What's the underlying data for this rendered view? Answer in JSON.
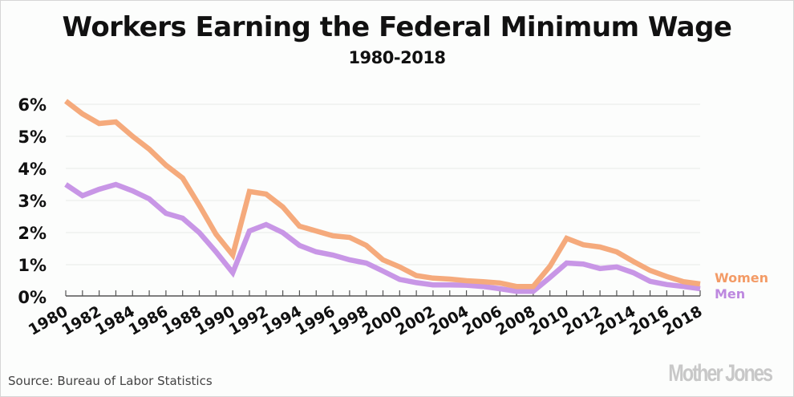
{
  "chart_data": {
    "type": "line",
    "title": "Workers Earning the Federal Minimum Wage",
    "subtitle": "1980-2018",
    "xlabel": "",
    "ylabel": "",
    "ylim": [
      0,
      6
    ],
    "xlim": [
      1980,
      2018
    ],
    "grid": true,
    "legend_position": "right-end-of-lines",
    "y_ticks": [
      "0%",
      "1%",
      "2%",
      "3%",
      "4%",
      "5%",
      "6%"
    ],
    "y_tick_values": [
      0,
      1,
      2,
      3,
      4,
      5,
      6
    ],
    "x_tick_labels": [
      "1980",
      "1982",
      "1984",
      "1986",
      "1988",
      "1990",
      "1992",
      "1994",
      "1996",
      "1998",
      "2000",
      "2002",
      "2004",
      "2006",
      "2008",
      "2010",
      "2012",
      "2014",
      "2016",
      "2018"
    ],
    "x": [
      1980,
      1981,
      1982,
      1983,
      1984,
      1985,
      1986,
      1987,
      1988,
      1989,
      1990,
      1991,
      1992,
      1993,
      1994,
      1995,
      1996,
      1997,
      1998,
      1999,
      2000,
      2001,
      2002,
      2003,
      2004,
      2005,
      2006,
      2007,
      2008,
      2009,
      2010,
      2011,
      2012,
      2013,
      2014,
      2015,
      2016,
      2017,
      2018
    ],
    "series": [
      {
        "name": "Women",
        "color": "#f5aa7c",
        "label_color": "#f39b66",
        "values": [
          6.1,
          5.7,
          5.4,
          5.45,
          5.0,
          4.6,
          4.1,
          3.7,
          2.85,
          1.95,
          1.3,
          3.28,
          3.2,
          2.8,
          2.2,
          2.05,
          1.9,
          1.85,
          1.6,
          1.15,
          0.93,
          0.66,
          0.58,
          0.55,
          0.5,
          0.47,
          0.43,
          0.32,
          0.32,
          0.95,
          1.82,
          1.62,
          1.55,
          1.4,
          1.1,
          0.82,
          0.63,
          0.47,
          0.4
        ]
      },
      {
        "name": "Men",
        "color": "#c896e6",
        "label_color": "#bd88df",
        "values": [
          3.5,
          3.15,
          3.35,
          3.5,
          3.3,
          3.05,
          2.6,
          2.45,
          2.0,
          1.4,
          0.75,
          2.05,
          2.25,
          2.0,
          1.6,
          1.4,
          1.3,
          1.15,
          1.05,
          0.8,
          0.54,
          0.44,
          0.37,
          0.37,
          0.36,
          0.32,
          0.25,
          0.17,
          0.17,
          0.6,
          1.05,
          1.02,
          0.88,
          0.93,
          0.75,
          0.48,
          0.38,
          0.32,
          0.25
        ]
      }
    ]
  },
  "footer": {
    "source": "Source: Bureau of Labor Statistics",
    "brand": "Mother Jones"
  },
  "colors": {
    "gridline": "#e9ebe9",
    "axis": "#555555",
    "brand_gray": "#c8c8c8"
  }
}
